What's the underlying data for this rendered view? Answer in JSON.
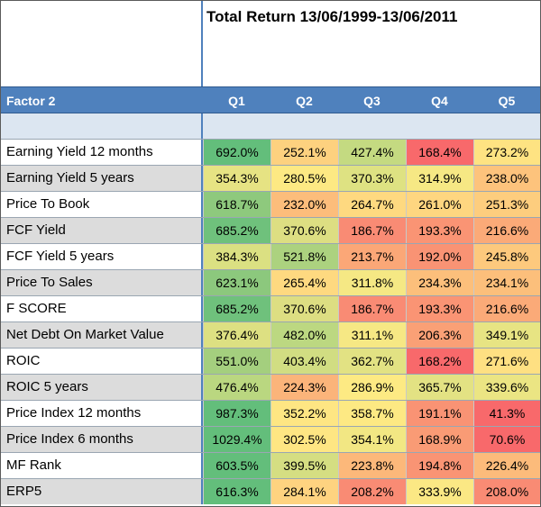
{
  "title": "Total Return 13/06/1999-13/06/2011",
  "header": {
    "factor_label": "Factor 2",
    "quartiles": [
      "Q1",
      "Q2",
      "Q3",
      "Q4",
      "Q5"
    ]
  },
  "rows": [
    {
      "label": "Earning Yield 12 months",
      "values": [
        "692.0%",
        "252.1%",
        "427.4%",
        "168.4%",
        "273.2%"
      ],
      "colors": [
        "#63be7b",
        "#fdd17f",
        "#c4da81",
        "#f8696b",
        "#fee382"
      ]
    },
    {
      "label": "Earning Yield 5 years",
      "values": [
        "354.3%",
        "280.5%",
        "370.3%",
        "314.9%",
        "238.0%"
      ],
      "colors": [
        "#e6e383",
        "#fde983",
        "#dee282",
        "#f6e884",
        "#fdc37c"
      ]
    },
    {
      "label": "Price To Book",
      "values": [
        "618.7%",
        "232.0%",
        "264.7%",
        "261.0%",
        "251.3%"
      ],
      "colors": [
        "#8ec97d",
        "#fcbd7b",
        "#fed980",
        "#fed680",
        "#fdcd7e"
      ]
    },
    {
      "label": "FCF Yield",
      "values": [
        "685.2%",
        "370.6%",
        "186.7%",
        "193.3%",
        "216.6%"
      ],
      "colors": [
        "#6fc17c",
        "#ddde82",
        "#f98b74",
        "#fa9474",
        "#fbaa78"
      ]
    },
    {
      "label": "FCF Yield 5 years",
      "values": [
        "384.3%",
        "521.8%",
        "213.7%",
        "192.0%",
        "245.8%"
      ],
      "colors": [
        "#dbe082",
        "#acd27f",
        "#fba777",
        "#f99374",
        "#fdc97d"
      ]
    },
    {
      "label": "Price To Sales",
      "values": [
        "623.1%",
        "265.4%",
        "311.8%",
        "234.3%",
        "234.1%"
      ],
      "colors": [
        "#8cc87d",
        "#fed980",
        "#f5e884",
        "#fcbf7b",
        "#fcbf7b"
      ]
    },
    {
      "label": "F SCORE",
      "values": [
        "685.2%",
        "370.6%",
        "186.7%",
        "193.3%",
        "216.6%"
      ],
      "colors": [
        "#6fc17c",
        "#ddde82",
        "#f98b74",
        "#fa9474",
        "#fbaa78"
      ]
    },
    {
      "label": "Net Debt On Market Value",
      "values": [
        "376.4%",
        "482.0%",
        "311.1%",
        "206.3%",
        "349.1%"
      ],
      "colors": [
        "#dde082",
        "#bcd881",
        "#f6e884",
        "#faa076",
        "#e7e483"
      ]
    },
    {
      "label": "ROIC",
      "values": [
        "551.0%",
        "403.4%",
        "362.7%",
        "168.2%",
        "271.6%"
      ],
      "colors": [
        "#a4cf7e",
        "#d1dd82",
        "#e2e283",
        "#f8696b",
        "#fee082"
      ]
    },
    {
      "label": "ROIC 5 years",
      "values": [
        "476.4%",
        "224.3%",
        "286.9%",
        "365.7%",
        "339.6%"
      ],
      "colors": [
        "#bad780",
        "#fbb47a",
        "#fdea83",
        "#e3e283",
        "#ebe583"
      ]
    },
    {
      "label": "Price Index 12 months",
      "values": [
        "987.3%",
        "352.2%",
        "358.7%",
        "191.1%",
        "41.3%"
      ],
      "colors": [
        "#63be7b",
        "#fee683",
        "#fde983",
        "#f99374",
        "#f8696b"
      ]
    },
    {
      "label": "Price Index 6 months",
      "values": [
        "1029.4%",
        "302.5%",
        "354.1%",
        "168.9%",
        "70.6%"
      ],
      "colors": [
        "#63be7b",
        "#fee683",
        "#f2e783",
        "#f99b75",
        "#f8696b"
      ]
    },
    {
      "label": "MF Rank",
      "values": [
        "603.5%",
        "399.5%",
        "223.8%",
        "194.8%",
        "226.4%"
      ],
      "colors": [
        "#63be7b",
        "#d5de82",
        "#fcb87a",
        "#f99474",
        "#fcbb7b"
      ]
    },
    {
      "label": "ERP5",
      "values": [
        "616.3%",
        "284.1%",
        "208.2%",
        "333.9%",
        "208.0%"
      ],
      "colors": [
        "#63be7b",
        "#fed380",
        "#f98b74",
        "#fbe884",
        "#f98b74"
      ]
    }
  ]
}
